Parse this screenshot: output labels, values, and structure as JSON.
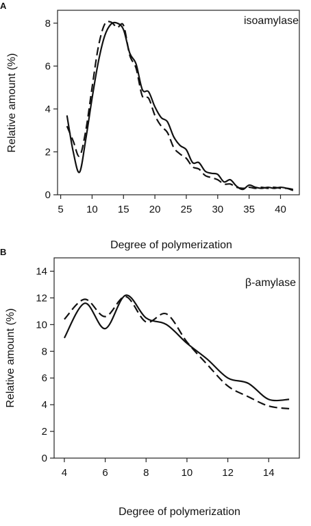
{
  "chart_data": [
    {
      "panel": "A",
      "type": "line",
      "label": "isoamylase",
      "xlabel": "Degree of polymerization",
      "ylabel": "Relative amount (%)",
      "xlim": [
        4.5,
        43
      ],
      "ylim": [
        0,
        8.6
      ],
      "xticks": [
        5,
        10,
        15,
        20,
        25,
        30,
        35,
        40
      ],
      "yticks": [
        0,
        2,
        4,
        6,
        8
      ],
      "series": [
        {
          "style": "solid",
          "x": [
            6,
            7,
            8,
            9,
            10,
            11,
            12,
            13,
            14,
            15,
            16,
            17,
            18,
            19,
            20,
            21,
            22,
            23,
            24,
            25,
            26,
            27,
            28,
            29,
            30,
            31,
            32,
            33,
            34,
            35,
            36,
            37,
            38,
            39,
            40,
            41,
            42
          ],
          "y": [
            3.7,
            2.0,
            1.05,
            2.6,
            4.5,
            6.2,
            7.4,
            7.95,
            8.0,
            7.7,
            6.6,
            6.1,
            4.9,
            4.8,
            4.1,
            3.6,
            3.4,
            2.7,
            2.3,
            2.1,
            1.5,
            1.5,
            1.1,
            1.0,
            0.95,
            0.6,
            0.7,
            0.4,
            0.25,
            0.45,
            0.35,
            0.3,
            0.35,
            0.3,
            0.35,
            0.3,
            0.2
          ]
        },
        {
          "style": "dashed",
          "x": [
            6,
            7,
            8,
            9,
            10,
            11,
            12,
            13,
            14,
            15,
            16,
            17,
            18,
            19,
            20,
            21,
            22,
            23,
            24,
            25,
            26,
            27,
            28,
            29,
            30,
            31,
            32,
            33,
            34,
            35,
            36,
            37,
            38,
            39,
            40,
            41,
            42
          ],
          "y": [
            3.2,
            2.5,
            1.8,
            3.0,
            5.0,
            6.9,
            7.95,
            8.05,
            7.8,
            7.9,
            6.5,
            5.9,
            4.6,
            4.5,
            3.7,
            3.2,
            2.9,
            2.2,
            1.9,
            1.7,
            1.3,
            1.2,
            0.9,
            0.8,
            0.7,
            0.5,
            0.5,
            0.35,
            0.3,
            0.35,
            0.3,
            0.35,
            0.3,
            0.35,
            0.3,
            0.3,
            0.25
          ]
        }
      ]
    },
    {
      "panel": "B",
      "type": "line",
      "label": "β-amylase",
      "xlabel": "Degree of polymerization",
      "ylabel": "Relative amount (%)",
      "xlim": [
        3.5,
        15.5
      ],
      "ylim": [
        0,
        15
      ],
      "xticks": [
        4,
        6,
        8,
        10,
        12,
        14
      ],
      "yticks": [
        0,
        2,
        4,
        6,
        8,
        10,
        12,
        14
      ],
      "series": [
        {
          "style": "solid",
          "x": [
            4,
            5,
            6,
            7,
            8,
            9,
            10,
            11,
            12,
            13,
            14,
            15
          ],
          "y": [
            9.0,
            11.6,
            9.7,
            12.2,
            10.5,
            10.0,
            8.6,
            7.4,
            6.0,
            5.6,
            4.4,
            4.4
          ]
        },
        {
          "style": "dashed",
          "x": [
            4,
            5,
            6,
            7,
            8,
            9,
            10,
            11,
            12,
            13,
            14,
            15
          ],
          "y": [
            10.4,
            11.9,
            10.6,
            12.1,
            10.2,
            10.8,
            8.7,
            7.0,
            5.4,
            4.6,
            3.9,
            3.7
          ]
        }
      ]
    }
  ]
}
